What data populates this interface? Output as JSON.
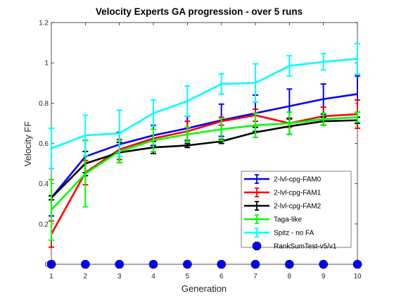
{
  "chart_data": {
    "type": "line",
    "title": "Velocity Experts GA progression - over 5 runs",
    "xlabel": "Generation",
    "ylabel": "Velocity FF",
    "xlim": [
      1,
      10
    ],
    "ylim": [
      0,
      1.2
    ],
    "x": [
      1,
      2,
      3,
      4,
      5,
      6,
      7,
      8,
      9,
      10
    ],
    "xticks": [
      "1",
      "2",
      "3",
      "4",
      "5",
      "6",
      "7",
      "8",
      "9",
      "10"
    ],
    "yticks": [
      "0",
      "0.2",
      "0.4",
      "0.6",
      "0.8",
      "1",
      "1.2"
    ],
    "grid": false,
    "legend_position": "bottom-right",
    "series": [
      {
        "name": "2-lvl-cpg-FAM0",
        "color": "#0000ff",
        "values": [
          0.33,
          0.535,
          0.595,
          0.64,
          0.675,
          0.715,
          0.75,
          0.785,
          0.82,
          0.845
        ],
        "err": [
          0.09,
          0.08,
          0.06,
          0.05,
          0.06,
          0.08,
          0.09,
          0.085,
          0.075,
          0.09
        ]
      },
      {
        "name": "2-lvl-cpg-FAM1",
        "color": "#ff0000",
        "values": [
          0.15,
          0.455,
          0.57,
          0.625,
          0.66,
          0.71,
          0.74,
          0.7,
          0.735,
          0.745
        ],
        "err": [
          0.065,
          0.06,
          0.05,
          0.045,
          0.05,
          0.02,
          0.03,
          0.02,
          0.045,
          0.07
        ]
      },
      {
        "name": "2-lvl-cpg-FAM2",
        "color": "#000000",
        "values": [
          0.33,
          0.5,
          0.555,
          0.58,
          0.59,
          0.61,
          0.655,
          0.685,
          0.71,
          0.715
        ],
        "err": [
          0.01,
          0.06,
          0.05,
          0.03,
          0.01,
          0.01,
          0.025,
          0.04,
          0.02,
          0.015
        ]
      },
      {
        "name": "Taga-like",
        "color": "#00ff00",
        "values": [
          0.27,
          0.45,
          0.56,
          0.615,
          0.645,
          0.67,
          0.69,
          0.7,
          0.72,
          0.73
        ],
        "err": [
          0.15,
          0.165,
          0.055,
          0.055,
          0.035,
          0.055,
          0.06,
          0.055,
          0.03,
          0.025
        ]
      },
      {
        "name": "Spitz - no FA",
        "color": "#00ffff",
        "values": [
          0.575,
          0.64,
          0.65,
          0.75,
          0.81,
          0.895,
          0.9,
          0.985,
          1.005,
          1.02
        ],
        "err": [
          0.1,
          0.1,
          0.115,
          0.065,
          0.075,
          0.05,
          0.095,
          0.05,
          0.04,
          0.075
        ]
      }
    ],
    "ranksum": {
      "name": "RankSumTest-v5/v1",
      "color": "#0000ff",
      "values": [
        0,
        0,
        0,
        0,
        0,
        0,
        0,
        0,
        0,
        0
      ]
    }
  }
}
